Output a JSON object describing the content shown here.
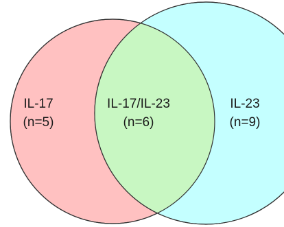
{
  "diagram": {
    "type": "venn-2",
    "sets": [
      {
        "name": "IL-17",
        "count_label": "(n=5)",
        "count": 5,
        "fill": "#ffc1c1",
        "stroke": "#333333"
      },
      {
        "name": "IL-23",
        "count_label": "(n=9)",
        "count": 9,
        "fill": "#c4ffff",
        "stroke": "#333333"
      }
    ],
    "intersection": {
      "name": "IL-17/IL-23",
      "count_label": "(n=6)",
      "count": 6,
      "fill": "#c8f7c2"
    }
  }
}
